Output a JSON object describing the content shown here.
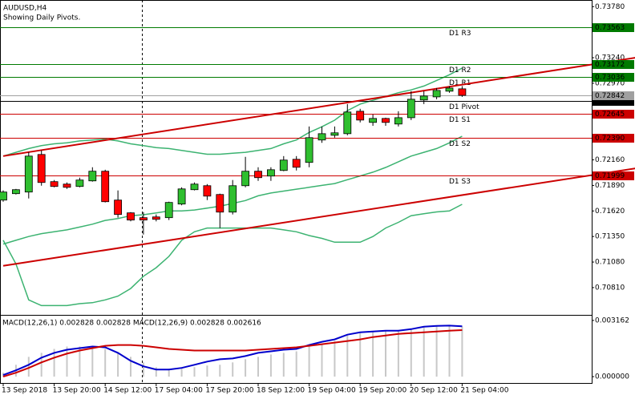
{
  "chart_data": {
    "type": "candlestick",
    "title": "AUDUSD,H4",
    "subtitle": "Showing Daily Pivots.",
    "categories": [
      "13 Sep 2018",
      null,
      null,
      null,
      "13 Sep 20:00",
      null,
      null,
      null,
      "14 Sep 12:00",
      null,
      null,
      null,
      "17 Sep 04:00",
      null,
      null,
      null,
      "17 Sep 20:00",
      null,
      null,
      null,
      "18 Sep 12:00",
      null,
      null,
      null,
      "19 Sep 04:00",
      null,
      null,
      null,
      "19 Sep 20:00",
      null,
      null,
      null,
      "20 Sep 12:00",
      null,
      null,
      null,
      "21 Sep 04:00"
    ],
    "open": [
      0.71735,
      0.71803,
      0.7182,
      0.72217,
      0.7193,
      0.71904,
      0.71879,
      0.71938,
      0.7204,
      0.71735,
      0.716,
      0.71549,
      0.71557,
      0.71549,
      0.71693,
      0.71845,
      0.71887,
      0.71794,
      0.71608,
      0.71887,
      0.7204,
      0.71989,
      0.72048,
      0.72166,
      0.72133,
      0.7237,
      0.7242,
      0.72437,
      0.72674,
      0.72556,
      0.72598,
      0.72539,
      0.72606,
      0.72793,
      0.72826,
      0.72886,
      0.72911
    ],
    "high": [
      0.71837,
      0.71853,
      0.72243,
      0.7226,
      0.71947,
      0.71921,
      0.71972,
      0.72082,
      0.72056,
      0.71837,
      0.71608,
      0.71608,
      0.71583,
      0.71718,
      0.7187,
      0.71921,
      0.71904,
      0.71803,
      0.71947,
      0.72192,
      0.72082,
      0.72082,
      0.722,
      0.722,
      0.72513,
      0.72513,
      0.72513,
      0.7275,
      0.727,
      0.7264,
      0.72606,
      0.72674,
      0.72886,
      0.72886,
      0.72919,
      0.7294,
      0.7294
    ],
    "low": [
      0.71718,
      0.71794,
      0.71752,
      0.71887,
      0.7187,
      0.71853,
      0.7187,
      0.7193,
      0.7171,
      0.71549,
      0.7151,
      0.71371,
      0.7151,
      0.71524,
      0.7168,
      0.71837,
      0.71735,
      0.71439,
      0.71583,
      0.7187,
      0.71938,
      0.71938,
      0.7204,
      0.72048,
      0.72082,
      0.7234,
      0.72395,
      0.7242,
      0.72556,
      0.7252,
      0.7252,
      0.72513,
      0.72581,
      0.7275,
      0.72801,
      0.7287,
      0.72826
    ],
    "close": [
      0.7182,
      0.71845,
      0.722,
      0.71921,
      0.71879,
      0.7187,
      0.71947,
      0.7204,
      0.71718,
      0.71583,
      0.71524,
      0.71524,
      0.71532,
      0.7171,
      0.71853,
      0.71904,
      0.71777,
      0.71608,
      0.71887,
      0.7204,
      0.71972,
      0.72056,
      0.72158,
      0.72082,
      0.72395,
      0.72437,
      0.72446,
      0.72666,
      0.72581,
      0.72598,
      0.72556,
      0.72606,
      0.72801,
      0.72835,
      0.72894,
      0.72919,
      0.72842
    ],
    "up_color": "#2fbf2f",
    "down_color": "#ff0000",
    "ylim": [
      0.7053,
      0.7385
    ],
    "yticks": [
      {
        "value": 0.7378,
        "label": "0.73780"
      },
      {
        "value": 0.7324,
        "label": "0.73240"
      },
      {
        "value": 0.7297,
        "label": "0.72970"
      },
      {
        "value": 0.7216,
        "label": "0.72160"
      },
      {
        "value": 0.7189,
        "label": "0.71890"
      },
      {
        "value": 0.7162,
        "label": "0.71620"
      },
      {
        "value": 0.7135,
        "label": "0.71350"
      },
      {
        "value": 0.7108,
        "label": "0.71080"
      },
      {
        "value": 0.7081,
        "label": "0.70810"
      }
    ],
    "bands": [
      {
        "color": "#3cb371",
        "values": [
          0.722,
          0.7224,
          0.7228,
          0.7231,
          0.7233,
          0.7234,
          0.7236,
          0.7237,
          0.7238,
          0.7236,
          0.7233,
          0.7231,
          0.7229,
          0.7228,
          0.7226,
          0.7224,
          0.7222,
          0.7222,
          0.7223,
          0.7224,
          0.7226,
          0.7228,
          0.7233,
          0.7237,
          0.7245,
          0.7251,
          0.7258,
          0.7268,
          0.7275,
          0.7279,
          0.7283,
          0.7287,
          0.729,
          0.7294,
          0.73,
          0.7306,
          0.7313
        ]
      },
      {
        "color": "#3cb371",
        "values": [
          0.7127,
          0.7131,
          0.7135,
          0.7138,
          0.714,
          0.7142,
          0.7145,
          0.7148,
          0.7152,
          0.7154,
          0.7157,
          0.7158,
          0.716,
          0.7162,
          0.7162,
          0.7163,
          0.7165,
          0.7167,
          0.717,
          0.7173,
          0.7178,
          0.7181,
          0.7183,
          0.7185,
          0.7187,
          0.7189,
          0.7191,
          0.7195,
          0.7199,
          0.7203,
          0.7208,
          0.7214,
          0.722,
          0.7224,
          0.7228,
          0.7234,
          0.7241
        ]
      },
      {
        "color": "#3cb371",
        "values": [
          0.7131,
          0.7106,
          0.7068,
          0.7062,
          0.7062,
          0.7062,
          0.7064,
          0.7065,
          0.7068,
          0.7072,
          0.708,
          0.7093,
          0.7102,
          0.7114,
          0.7131,
          0.714,
          0.7144,
          0.7144,
          0.7144,
          0.7144,
          0.7144,
          0.7144,
          0.7142,
          0.714,
          0.7136,
          0.7133,
          0.7129,
          0.7129,
          0.7129,
          0.7135,
          0.7144,
          0.715,
          0.7157,
          0.7159,
          0.7161,
          0.7162,
          0.7169
        ]
      }
    ],
    "trendlines": [
      {
        "color": "#cc0000",
        "x": [
          0,
          49.6
        ],
        "y": [
          0.722,
          0.7324
        ]
      },
      {
        "color": "#cc0000",
        "x": [
          0,
          49.6
        ],
        "y": [
          0.7104,
          0.7207
        ]
      }
    ],
    "levels": [
      {
        "name": "D1 R3",
        "value": 0.73563,
        "color": "#007a00"
      },
      {
        "name": "D1 R2",
        "value": 0.73172,
        "color": "#007a00"
      },
      {
        "name": "D1 R1",
        "value": 0.73036,
        "color": "#007a00"
      },
      {
        "name": "D1 Pivot",
        "value": 0.72781,
        "color": "#000000"
      },
      {
        "name": "D1 S1",
        "value": 0.72645,
        "color": "#cc0000"
      },
      {
        "name": "D1 S2",
        "value": 0.7239,
        "label": "0.72390",
        "color": "#cc0000"
      },
      {
        "name": "D1 S3",
        "value": 0.71999,
        "color": "#cc0000"
      }
    ],
    "current_price": {
      "value": 0.72842,
      "color": "#a0a0a0"
    },
    "macd": {
      "title": "MACD(12,26,1) 0.002828 0.002828 MACD(12,26,9) 0.002828 0.002616",
      "ylim": [
        -0.000356,
        0.003429
      ],
      "yticks": [
        0.003162,
        {
          "value": 0,
          "label": "0.000000"
        }
      ],
      "histogram": {
        "color": "#c8c8c8",
        "values": [
          0.000223,
          0.000668,
          0.001113,
          0.001336,
          0.001559,
          0.001692,
          0.001692,
          0.001648,
          0.001559,
          0.001336,
          0.001113,
          0.000802,
          0.000534,
          0.000445,
          0.000445,
          0.000534,
          0.000623,
          0.000668,
          0.000802,
          0.00098,
          0.001113,
          0.001247,
          0.001336,
          0.001425,
          0.001692,
          0.00187,
          0.002004,
          0.002316,
          0.002449,
          0.002538,
          0.002583,
          0.002627,
          0.002672,
          0.002761,
          0.00285,
          0.00285,
          0.002828
        ]
      },
      "lines": [
        {
          "color": "#0000cc",
          "values": [
            8.9e-05,
            0.000356,
            0.000668,
            0.001069,
            0.001336,
            0.001514,
            0.001603,
            0.001692,
            0.001648,
            0.001336,
            0.000891,
            0.000579,
            0.000401,
            0.000401,
            0.00049,
            0.000668,
            0.000846,
            0.00098,
            0.001024,
            0.001158,
            0.001336,
            0.001425,
            0.001514,
            0.001559,
            0.001781,
            0.001959,
            0.002093,
            0.00236,
            0.002494,
            0.002538,
            0.002583,
            0.002583,
            0.002672,
            0.002805,
            0.00285,
            0.00287,
            0.002828
          ]
        },
        {
          "color": "#cc0000",
          "values": [
            0,
            0.000223,
            0.00049,
            0.000802,
            0.001069,
            0.001291,
            0.001469,
            0.001603,
            0.001737,
            0.001781,
            0.001781,
            0.001737,
            0.001648,
            0.001559,
            0.001514,
            0.001469,
            0.001469,
            0.001469,
            0.001469,
            0.001469,
            0.001514,
            0.001559,
            0.001603,
            0.001648,
            0.001737,
            0.001826,
            0.001915,
            0.002004,
            0.002093,
            0.002226,
            0.002316,
            0.002405,
            0.002449,
            0.002494,
            0.002538,
            0.002583,
            0.002616
          ]
        }
      ]
    }
  }
}
